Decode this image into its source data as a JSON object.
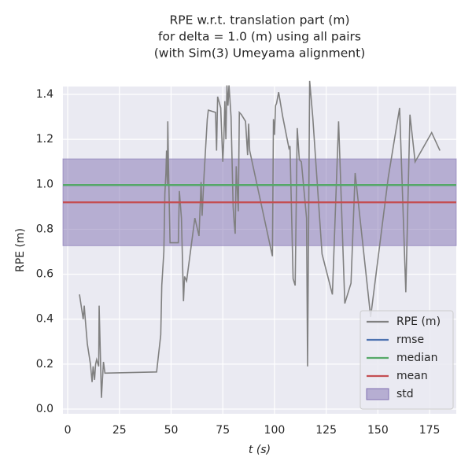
{
  "chart_data": {
    "type": "line",
    "title": [
      "RPE w.r.t. translation part (m)",
      "for delta = 1.0 (m) using all pairs",
      "(with Sim(3) Umeyama alignment)"
    ],
    "x_label": "t (s)",
    "y_label": "RPE (m)",
    "xlim": [
      -2.3,
      187.9
    ],
    "ylim": [
      -0.021,
      1.435
    ],
    "xticks": [
      0,
      25,
      50,
      75,
      100,
      125,
      150,
      175
    ],
    "yticks": [
      {
        "value": 0,
        "label": "0.0"
      },
      0.2,
      0.4,
      0.6,
      0.8,
      {
        "value": 1,
        "label": "1.0"
      },
      1.2,
      1.4
    ],
    "grid": true,
    "legend": "lower right",
    "series": [
      {
        "name": "RPE (m)",
        "color": "#808080",
        "x": [
          5.7,
          7.5,
          8.0,
          8.5,
          9.5,
          11,
          11.8,
          12.3,
          13.0,
          13.5,
          14.0,
          15.0,
          15.2,
          16.0,
          16.3,
          17.3,
          18.0,
          43,
          45,
          45.5,
          46.5,
          47,
          47.5,
          47.8,
          48.2,
          48.4,
          48.7,
          49.5,
          53.5,
          54,
          55,
          56,
          56.5,
          57.5,
          61.5,
          63.5,
          64.5,
          65,
          66,
          67.5,
          68,
          71.5,
          72,
          72.5,
          74,
          75,
          75.5,
          76,
          76.5,
          77,
          77.5,
          78,
          79,
          80,
          80.5,
          81,
          81.5,
          82.5,
          83,
          84,
          86,
          87,
          87.5,
          88,
          99,
          99.5,
          100,
          100.5,
          101,
          102,
          104,
          107,
          107.5,
          109,
          110,
          111,
          112,
          113,
          115.5,
          116,
          117,
          118.5,
          123,
          128,
          131,
          134,
          137,
          139,
          146.5,
          155,
          160.5,
          163.5,
          165.5,
          168,
          176,
          180
        ],
        "values": [
          0.51,
          0.4,
          0.46,
          0.4,
          0.29,
          0.2,
          0.12,
          0.19,
          0.13,
          0.2,
          0.22,
          0.19,
          0.46,
          0.17,
          0.05,
          0.21,
          0.16,
          0.165,
          0.33,
          0.55,
          0.7,
          0.96,
          1.05,
          1.15,
          1.0,
          1.28,
          1.1,
          0.74,
          0.74,
          0.97,
          0.85,
          0.48,
          0.59,
          0.57,
          0.85,
          0.77,
          1.01,
          0.86,
          1.05,
          1.29,
          1.33,
          1.32,
          1.15,
          1.39,
          1.34,
          1.1,
          1.2,
          1.37,
          1.2,
          1.44,
          1.35,
          1.44,
          1.3,
          0.9,
          0.83,
          0.78,
          1.08,
          0.88,
          1.32,
          1.31,
          1.28,
          1.13,
          1.27,
          1.15,
          0.68,
          1.29,
          1.22,
          1.35,
          1.36,
          1.41,
          1.3,
          1.16,
          1.17,
          0.58,
          0.55,
          1.25,
          1.11,
          1.1,
          0.85,
          0.19,
          1.46,
          1.3,
          0.69,
          0.51,
          1.28,
          0.47,
          0.56,
          1.05,
          0.41,
          1.03,
          1.34,
          0.52,
          1.31,
          1.1,
          1.23,
          1.15
        ]
      }
    ],
    "stats": [
      {
        "name": "rmse",
        "color": "#4c72b0",
        "value": 0.997
      },
      {
        "name": "median",
        "color": "#55a868",
        "value": 0.997
      },
      {
        "name": "mean",
        "color": "#c44e52",
        "value": 0.92
      },
      {
        "name": "std",
        "color": "#8172b2",
        "value": 0.193
      }
    ]
  }
}
